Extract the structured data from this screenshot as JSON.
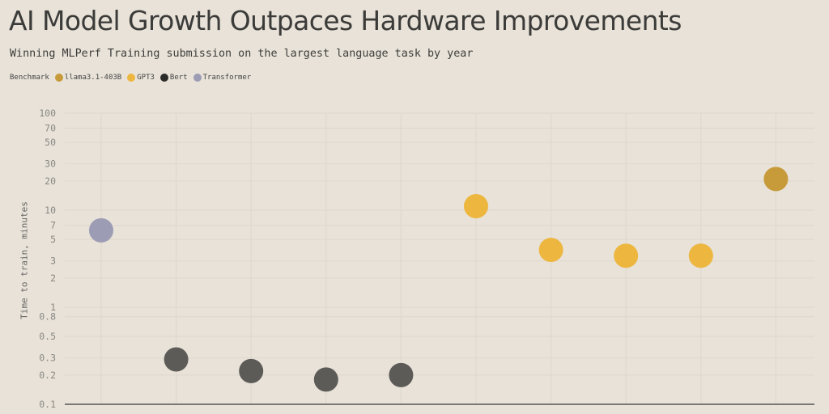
{
  "header": {
    "title": "AI Model Growth Outpaces Hardware Improvements",
    "subtitle": "Winning MLPerf Training submission on the largest language task by year"
  },
  "legend": {
    "label": "Benchmark",
    "items": [
      {
        "name": "llama3.1-403B",
        "color": "#c79a3a"
      },
      {
        "name": "GPT3",
        "color": "#edb63e"
      },
      {
        "name": "Bert",
        "color": "#2b2b29"
      },
      {
        "name": "Transformer",
        "color": "#9c9cb5"
      }
    ]
  },
  "chart_data": {
    "type": "scatter",
    "title": "AI Model Growth Outpaces Hardware Improvements",
    "subtitle": "Winning MLPerf Training submission on the largest language task by year",
    "xlabel": "",
    "ylabel": "Time to train, minutes",
    "yscale": "log",
    "ylim": [
      0.1,
      100
    ],
    "yticks": [
      100,
      70,
      50,
      30,
      20,
      10,
      7,
      5,
      3,
      2,
      1,
      0.8,
      0.5,
      0.3,
      0.2,
      0.1
    ],
    "x_tick_labels_visible": false,
    "grid": true,
    "legend_position": "top-left",
    "legend_title": "Benchmark",
    "series": [
      {
        "name": "Transformer",
        "color": "#9c9cb5",
        "points": [
          {
            "x_index": 0,
            "y": 6.2
          }
        ]
      },
      {
        "name": "Bert",
        "color": "#5c5b57",
        "points": [
          {
            "x_index": 1,
            "y": 0.29
          },
          {
            "x_index": 2,
            "y": 0.22
          },
          {
            "x_index": 3,
            "y": 0.18
          },
          {
            "x_index": 4,
            "y": 0.2
          }
        ]
      },
      {
        "name": "GPT3",
        "color": "#edb63e",
        "points": [
          {
            "x_index": 5,
            "y": 11
          },
          {
            "x_index": 6,
            "y": 3.9
          },
          {
            "x_index": 7,
            "y": 3.4
          },
          {
            "x_index": 8,
            "y": 3.4
          }
        ]
      },
      {
        "name": "llama3.1-403B",
        "color": "#c79a3a",
        "points": [
          {
            "x_index": 9,
            "y": 21
          }
        ]
      }
    ]
  },
  "colors": {
    "background": "#e8e2d8",
    "axis": "#7a7872",
    "grid": "#ddd7cc"
  }
}
